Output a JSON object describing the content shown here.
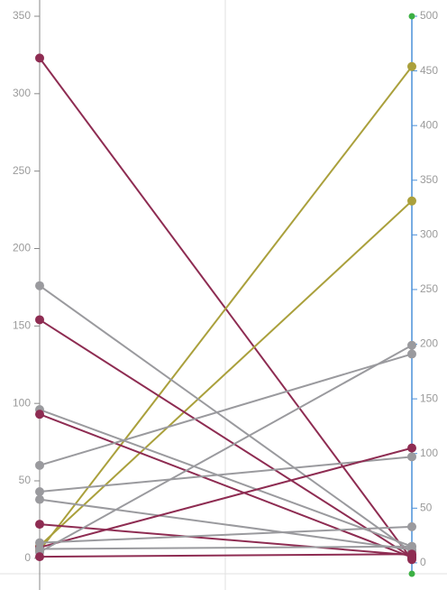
{
  "chart_data": {
    "type": "line",
    "ylim": [
      -10,
      350
    ],
    "yticks": [
      0,
      50,
      100,
      150,
      200,
      250,
      300,
      350
    ],
    "y2lim": [
      -10,
      500
    ],
    "y2ticks": [
      0,
      50,
      100,
      150,
      200,
      250,
      300,
      350,
      400,
      450,
      500
    ],
    "grid": true,
    "series": [
      {
        "color": "#8e2c52",
        "values": [
          323,
          3
        ]
      },
      {
        "color": "#aaa03c",
        "values": [
          5,
          454
        ]
      },
      {
        "color": "#aaa03c",
        "values": [
          8,
          331
        ]
      },
      {
        "color": "#9a9a9e",
        "values": [
          176,
          10
        ]
      },
      {
        "color": "#8e2c52",
        "values": [
          154,
          5
        ]
      },
      {
        "color": "#9a9a9e",
        "values": [
          96,
          15
        ]
      },
      {
        "color": "#8e2c52",
        "values": [
          93,
          5
        ]
      },
      {
        "color": "#9a9a9e",
        "values": [
          60,
          191
        ]
      },
      {
        "color": "#9a9a9e",
        "values": [
          43,
          97
        ]
      },
      {
        "color": "#9a9a9e",
        "values": [
          38,
          12
        ]
      },
      {
        "color": "#8e2c52",
        "values": [
          22,
          7
        ]
      },
      {
        "color": "#8e2c52",
        "values": [
          7,
          105
        ]
      },
      {
        "color": "#9a9a9e",
        "values": [
          4,
          199
        ]
      },
      {
        "color": "#9a9a9e",
        "values": [
          10,
          33
        ]
      },
      {
        "color": "#9a9a9e",
        "values": [
          6,
          15
        ]
      },
      {
        "color": "#8e2c52",
        "values": [
          1,
          8
        ]
      }
    ]
  }
}
